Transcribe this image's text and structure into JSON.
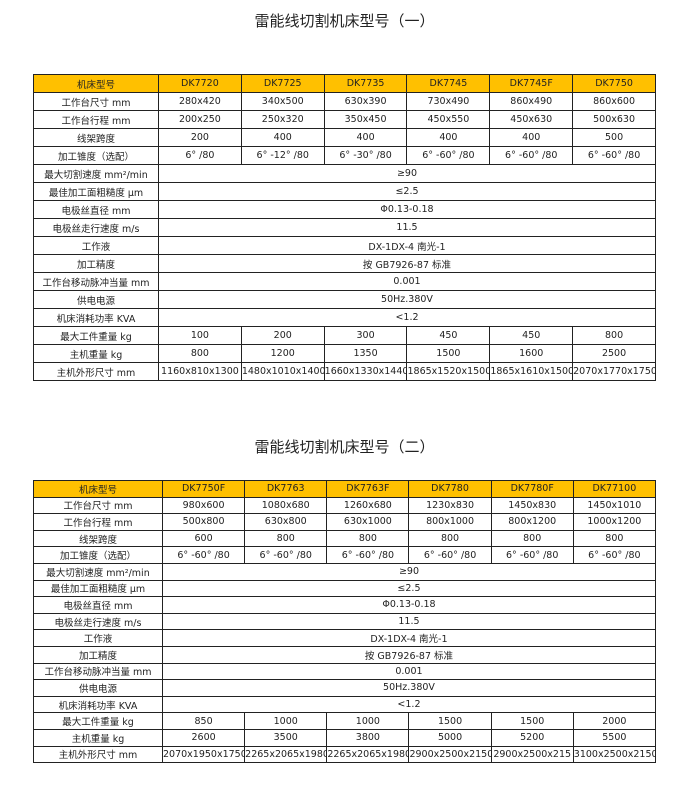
{
  "accent_color": "#FFC000",
  "tables": [
    {
      "title": "雷能线切割机床型号（一）",
      "header_label": "机床型号",
      "models": [
        "DK7720",
        "DK7725",
        "DK7735",
        "DK7745",
        "DK7745F",
        "DK7750"
      ],
      "rows": [
        {
          "label": "工作台尺寸 mm",
          "values": [
            "280x420",
            "340x500",
            "630x390",
            "730x490",
            "860x490",
            "860x600"
          ]
        },
        {
          "label": "工作台行程 mm",
          "values": [
            "200x250",
            "250x320",
            "350x450",
            "450x550",
            "450x630",
            "500x630"
          ]
        },
        {
          "label": "线架跨度",
          "values": [
            "200",
            "400",
            "400",
            "400",
            "400",
            "500"
          ]
        },
        {
          "label": "加工锥度（选配）",
          "values": [
            "6° /80",
            "6° -12° /80",
            "6° -30° /80",
            "6° -60° /80",
            "6° -60° /80",
            "6° -60° /80"
          ]
        },
        {
          "label": "最大切割速度 mm²/min",
          "merged": "≥90"
        },
        {
          "label": "最佳加工面粗糙度 μm",
          "merged": "≤2.5"
        },
        {
          "label": "电极丝直径 mm",
          "merged": "Φ0.13-0.18"
        },
        {
          "label": "电极丝走行速度 m/s",
          "merged": "11.5"
        },
        {
          "label": "工作液",
          "merged": "DX-1DX-4 南光-1"
        },
        {
          "label": "加工精度",
          "merged": "按 GB7926-87 标准"
        },
        {
          "label": "工作台移动脉冲当量 mm",
          "merged": "0.001"
        },
        {
          "label": "供电电源",
          "merged": "50Hz.380V"
        },
        {
          "label": "机床消耗功率 KVA",
          "merged": "<1.2"
        },
        {
          "label": "最大工件重量 kg",
          "values": [
            "100",
            "200",
            "300",
            "450",
            "450",
            "800"
          ]
        },
        {
          "label": "主机重量 kg",
          "values": [
            "800",
            "1200",
            "1350",
            "1500",
            "1600",
            "2500"
          ]
        },
        {
          "label": "主机外形尺寸 mm",
          "values": [
            "1160x810x1300",
            "1480x1010x1400",
            "1660x1330x1440",
            "1865x1520x1500",
            "1865x1610x1500",
            "2070x1770x1750"
          ]
        }
      ]
    },
    {
      "title": "雷能线切割机床型号（二）",
      "header_label": "机床型号",
      "models": [
        "DK7750F",
        "DK7763",
        "DK7763F",
        "DK7780",
        "DK7780F",
        "DK77100"
      ],
      "rows": [
        {
          "label": "工作台尺寸 mm",
          "values": [
            "980x600",
            "1080x680",
            "1260x680",
            "1230x830",
            "1450x830",
            "1450x1010"
          ]
        },
        {
          "label": "工作台行程 mm",
          "values": [
            "500x800",
            "630x800",
            "630x1000",
            "800x1000",
            "800x1200",
            "1000x1200"
          ]
        },
        {
          "label": "线架跨度",
          "values": [
            "600",
            "800",
            "800",
            "800",
            "800",
            "800"
          ]
        },
        {
          "label": "加工锥度（选配）",
          "values": [
            "6° -60° /80",
            "6° -60° /80",
            "6° -60° /80",
            "6° -60° /80",
            "6° -60° /80",
            "6° -60° /80"
          ]
        },
        {
          "label": "最大切割速度 mm²/min",
          "merged": "≥90"
        },
        {
          "label": "最佳加工面粗糙度 μm",
          "merged": "≤2.5"
        },
        {
          "label": "电极丝直径 mm",
          "merged": "Φ0.13-0.18"
        },
        {
          "label": "电极丝走行速度 m/s",
          "merged": "11.5"
        },
        {
          "label": "工作液",
          "merged": "DX-1DX-4 南光-1"
        },
        {
          "label": "加工精度",
          "merged": "按 GB7926-87 标准"
        },
        {
          "label": "工作台移动脉冲当量 mm",
          "merged": "0.001"
        },
        {
          "label": "供电电源",
          "merged": "50Hz.380V"
        },
        {
          "label": "机床消耗功率 KVA",
          "merged": "<1.2"
        },
        {
          "label": "最大工件重量 kg",
          "values": [
            "850",
            "1000",
            "1000",
            "1500",
            "1500",
            "2000"
          ]
        },
        {
          "label": "主机重量 kg",
          "values": [
            "2600",
            "3500",
            "3800",
            "5000",
            "5200",
            "5500"
          ]
        },
        {
          "label": "主机外形尺寸 mm",
          "values": [
            "2070x1950x1750",
            "2265x2065x1980",
            "2265x2065x1980",
            "2900x2500x2150",
            "2900x2500x215",
            "3100x2500x2150"
          ]
        }
      ]
    }
  ]
}
